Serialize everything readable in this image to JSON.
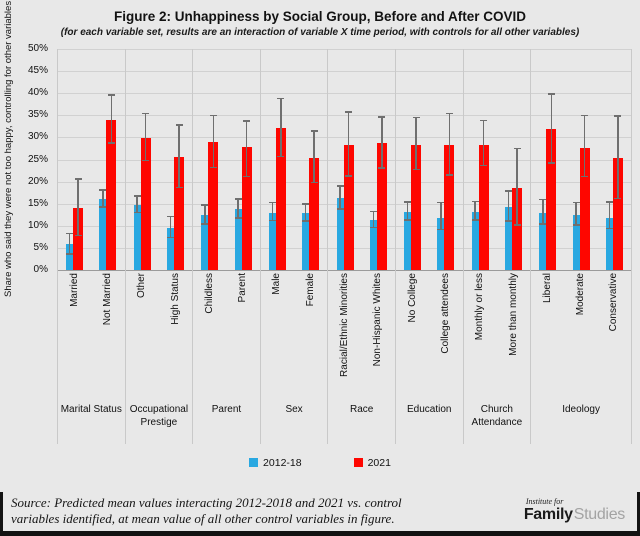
{
  "figure": {
    "title": "Figure 2: Unhappiness by Social Group, Before and After COVID",
    "subtitle": "(for each variable set, results are an interaction of variable X time period, with controls for all other variables)"
  },
  "chart_data": {
    "type": "bar",
    "title": "Figure 2: Unhappiness by Social Group, Before and After COVID",
    "ylabel": "Share who said they were not too happy, controlling for other variables",
    "xlabel": "",
    "ylim": [
      0,
      50
    ],
    "ytick_step": 5,
    "ytick_labels": [
      "0%",
      "5%",
      "10%",
      "15%",
      "20%",
      "25%",
      "30%",
      "35%",
      "40%",
      "45%",
      "50%"
    ],
    "grid": true,
    "error_bars": true,
    "legend_position": "bottom",
    "series_names": [
      "2012-18",
      "2021"
    ],
    "colors": {
      "series_2012_18": "#29a8e1",
      "series_2021": "#fe0600",
      "error_bar": "#6f6f6f",
      "background": "#e8e8e8"
    },
    "groups": [
      {
        "label": "Marital Status",
        "categories": [
          {
            "label": "Married",
            "values": [
              5.8,
              14.0
            ],
            "errors": [
              [
                3.5,
                8.1
              ],
              [
                7.6,
                20.4
              ]
            ]
          },
          {
            "label": "Not Married",
            "values": [
              16.0,
              34.0
            ],
            "errors": [
              [
                14.1,
                17.9
              ],
              [
                28.6,
                39.4
              ]
            ]
          }
        ]
      },
      {
        "label": "Occupational Prestige",
        "categories": [
          {
            "label": "Other",
            "values": [
              14.7,
              29.9
            ],
            "errors": [
              [
                12.8,
                16.6
              ],
              [
                24.6,
                35.2
              ]
            ]
          },
          {
            "label": "High Status",
            "values": [
              9.6,
              25.6
            ],
            "errors": [
              [
                7.2,
                12.0
              ],
              [
                18.5,
                32.7
              ]
            ]
          }
        ]
      },
      {
        "label": "Parent",
        "categories": [
          {
            "label": "Childless",
            "values": [
              12.4,
              28.9
            ],
            "errors": [
              [
                10.2,
                14.6
              ],
              [
                23.0,
                34.8
              ]
            ]
          },
          {
            "label": "Parent",
            "values": [
              13.8,
              27.9
            ],
            "errors": [
              [
                11.6,
                15.9
              ],
              [
                21.0,
                33.5
              ]
            ]
          }
        ]
      },
      {
        "label": "Sex",
        "categories": [
          {
            "label": "Male",
            "values": [
              13.0,
              32.1
            ],
            "errors": [
              [
                11.0,
                15.1
              ],
              [
                25.5,
                38.6
              ]
            ]
          },
          {
            "label": "Female",
            "values": [
              12.8,
              25.4
            ],
            "errors": [
              [
                10.9,
                14.8
              ],
              [
                19.6,
                31.3
              ]
            ]
          }
        ]
      },
      {
        "label": "Race",
        "categories": [
          {
            "label": "Racial/Ethnic Minorities",
            "values": [
              16.2,
              28.3
            ],
            "errors": [
              [
                13.6,
                18.8
              ],
              [
                21.1,
                35.6
              ]
            ]
          },
          {
            "label": "Non-Hispanic Whites",
            "values": [
              11.3,
              28.7
            ],
            "errors": [
              [
                9.5,
                13.1
              ],
              [
                22.9,
                34.5
              ]
            ]
          }
        ]
      },
      {
        "label": "Education",
        "categories": [
          {
            "label": "No College",
            "values": [
              13.2,
              28.4
            ],
            "errors": [
              [
                11.1,
                15.2
              ],
              [
                22.6,
                34.3
              ]
            ]
          },
          {
            "label": "College attendees",
            "values": [
              11.8,
              28.3
            ],
            "errors": [
              [
                9.0,
                15.1
              ],
              [
                21.3,
                35.3
              ]
            ]
          }
        ]
      },
      {
        "label": "Church Attendance",
        "categories": [
          {
            "label": "Monthly or less",
            "values": [
              13.2,
              28.4
            ],
            "errors": [
              [
                11.2,
                15.3
              ],
              [
                23.5,
                33.7
              ]
            ]
          },
          {
            "label": "More than monthly",
            "values": [
              14.3,
              18.6
            ],
            "errors": [
              [
                10.9,
                17.7
              ],
              [
                10.0,
                27.3
              ]
            ]
          }
        ]
      },
      {
        "label": "Ideology",
        "categories": [
          {
            "label": "Liberal",
            "values": [
              12.8,
              31.8
            ],
            "errors": [
              [
                10.2,
                15.8
              ],
              [
                24.1,
                39.7
              ]
            ]
          },
          {
            "label": "Moderate",
            "values": [
              12.4,
              27.7
            ],
            "errors": [
              [
                10.0,
                15.1
              ],
              [
                21.0,
                34.8
              ]
            ]
          },
          {
            "label": "Conservative",
            "values": [
              11.8,
              25.4
            ],
            "errors": [
              [
                9.2,
                15.2
              ],
              [
                16.0,
                34.7
              ]
            ]
          }
        ]
      }
    ]
  },
  "footer": {
    "source_line1": "Source: Predicted mean values interacting 2012-2018 and 2021 vs. control",
    "source_line2": "variables identified, at mean value of all other control variables in figure.",
    "logo_top": "Institute for",
    "logo_bold": "Family",
    "logo_light": "Studies"
  }
}
